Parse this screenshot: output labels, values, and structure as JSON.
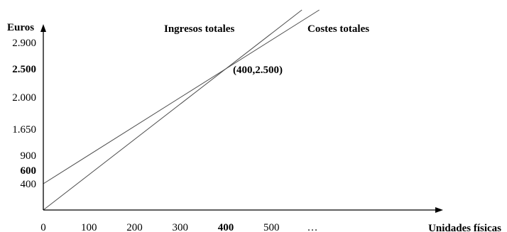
{
  "chart_data": {
    "type": "line",
    "ylabel": "Euros",
    "xlabel": "Unidades físicas",
    "x_ticks": [
      {
        "value": 0,
        "label": "0",
        "bold": false
      },
      {
        "value": 100,
        "label": "100",
        "bold": false
      },
      {
        "value": 200,
        "label": "200",
        "bold": false
      },
      {
        "value": 300,
        "label": "300",
        "bold": false
      },
      {
        "value": 400,
        "label": "400",
        "bold": true
      },
      {
        "value": 500,
        "label": "500",
        "bold": false
      },
      {
        "value": null,
        "label": "…",
        "bold": false
      }
    ],
    "y_ticks": [
      {
        "value": 400,
        "label": "400",
        "bold": false
      },
      {
        "value": 600,
        "label": "600",
        "bold": true
      },
      {
        "value": 900,
        "label": "900",
        "bold": false
      },
      {
        "value": 1650,
        "label": "1.650",
        "bold": false
      },
      {
        "value": 2000,
        "label": "2.000",
        "bold": false
      },
      {
        "value": 2500,
        "label": "2.500",
        "bold": true
      },
      {
        "value": 2900,
        "label": "2.900",
        "bold": false
      }
    ],
    "series": [
      {
        "name": "Ingresos totales",
        "x": [
          0,
          400
        ],
        "y": [
          0,
          2500
        ]
      },
      {
        "name": "Costes totales",
        "x": [
          0,
          400
        ],
        "y": [
          400,
          2500
        ]
      }
    ],
    "annotations": [
      {
        "text": "(400,2.500)",
        "x": 400,
        "y": 2500
      }
    ],
    "grid": false,
    "legend": "none"
  }
}
